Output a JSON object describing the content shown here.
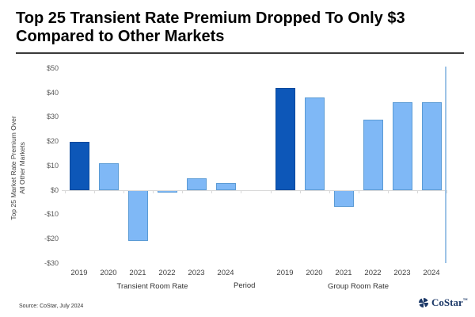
{
  "slide": {
    "title_line1": "Top 25 Transient Rate Premium Dropped To Only $3",
    "title_line2": "Compared to Other Markets",
    "source": "Source: CoStar, July 2024",
    "logo_text": "CoStar",
    "logo_mark": "™"
  },
  "chart_data": {
    "type": "bar",
    "title": "Top 25 Transient Rate Premium Dropped To Only $3 Compared to Other Markets",
    "xlabel": "Period",
    "ylabel": "Top 25 Market Rate Premium Over All Other Markets",
    "ylabel_lines": [
      "Top 25 Market Rate Premium Over",
      "All Other Markets"
    ],
    "ylim": [
      -30,
      50
    ],
    "grid": false,
    "legend": false,
    "yticks": [
      {
        "label": "$50",
        "value": 50
      },
      {
        "label": "$40",
        "value": 40
      },
      {
        "label": "$30",
        "value": 30
      },
      {
        "label": "$20",
        "value": 20
      },
      {
        "label": "$10",
        "value": 10
      },
      {
        "label": "$0",
        "value": 0
      },
      {
        "label": "-$10",
        "value": -10
      },
      {
        "label": "-$20",
        "value": -20
      },
      {
        "label": "-$30",
        "value": -30
      }
    ],
    "categories": [
      "2019",
      "2020",
      "2021",
      "2022",
      "2023",
      "2024"
    ],
    "series": [
      {
        "name": "Transient Room Rate",
        "values": [
          20,
          11,
          -21,
          -1,
          5,
          3
        ]
      },
      {
        "name": "Group Room Rate",
        "values": [
          42,
          38,
          -7,
          29,
          36,
          36
        ]
      }
    ],
    "highlight_category": "2019",
    "colors": {
      "highlight": "#0d57b8",
      "normal": "#7fb8f6",
      "highlight_border": "#0b4a9c",
      "normal_border": "#5b9bd5",
      "axis_line": "#d9d9d9",
      "right_edge_line": "#9dc3e6"
    }
  }
}
